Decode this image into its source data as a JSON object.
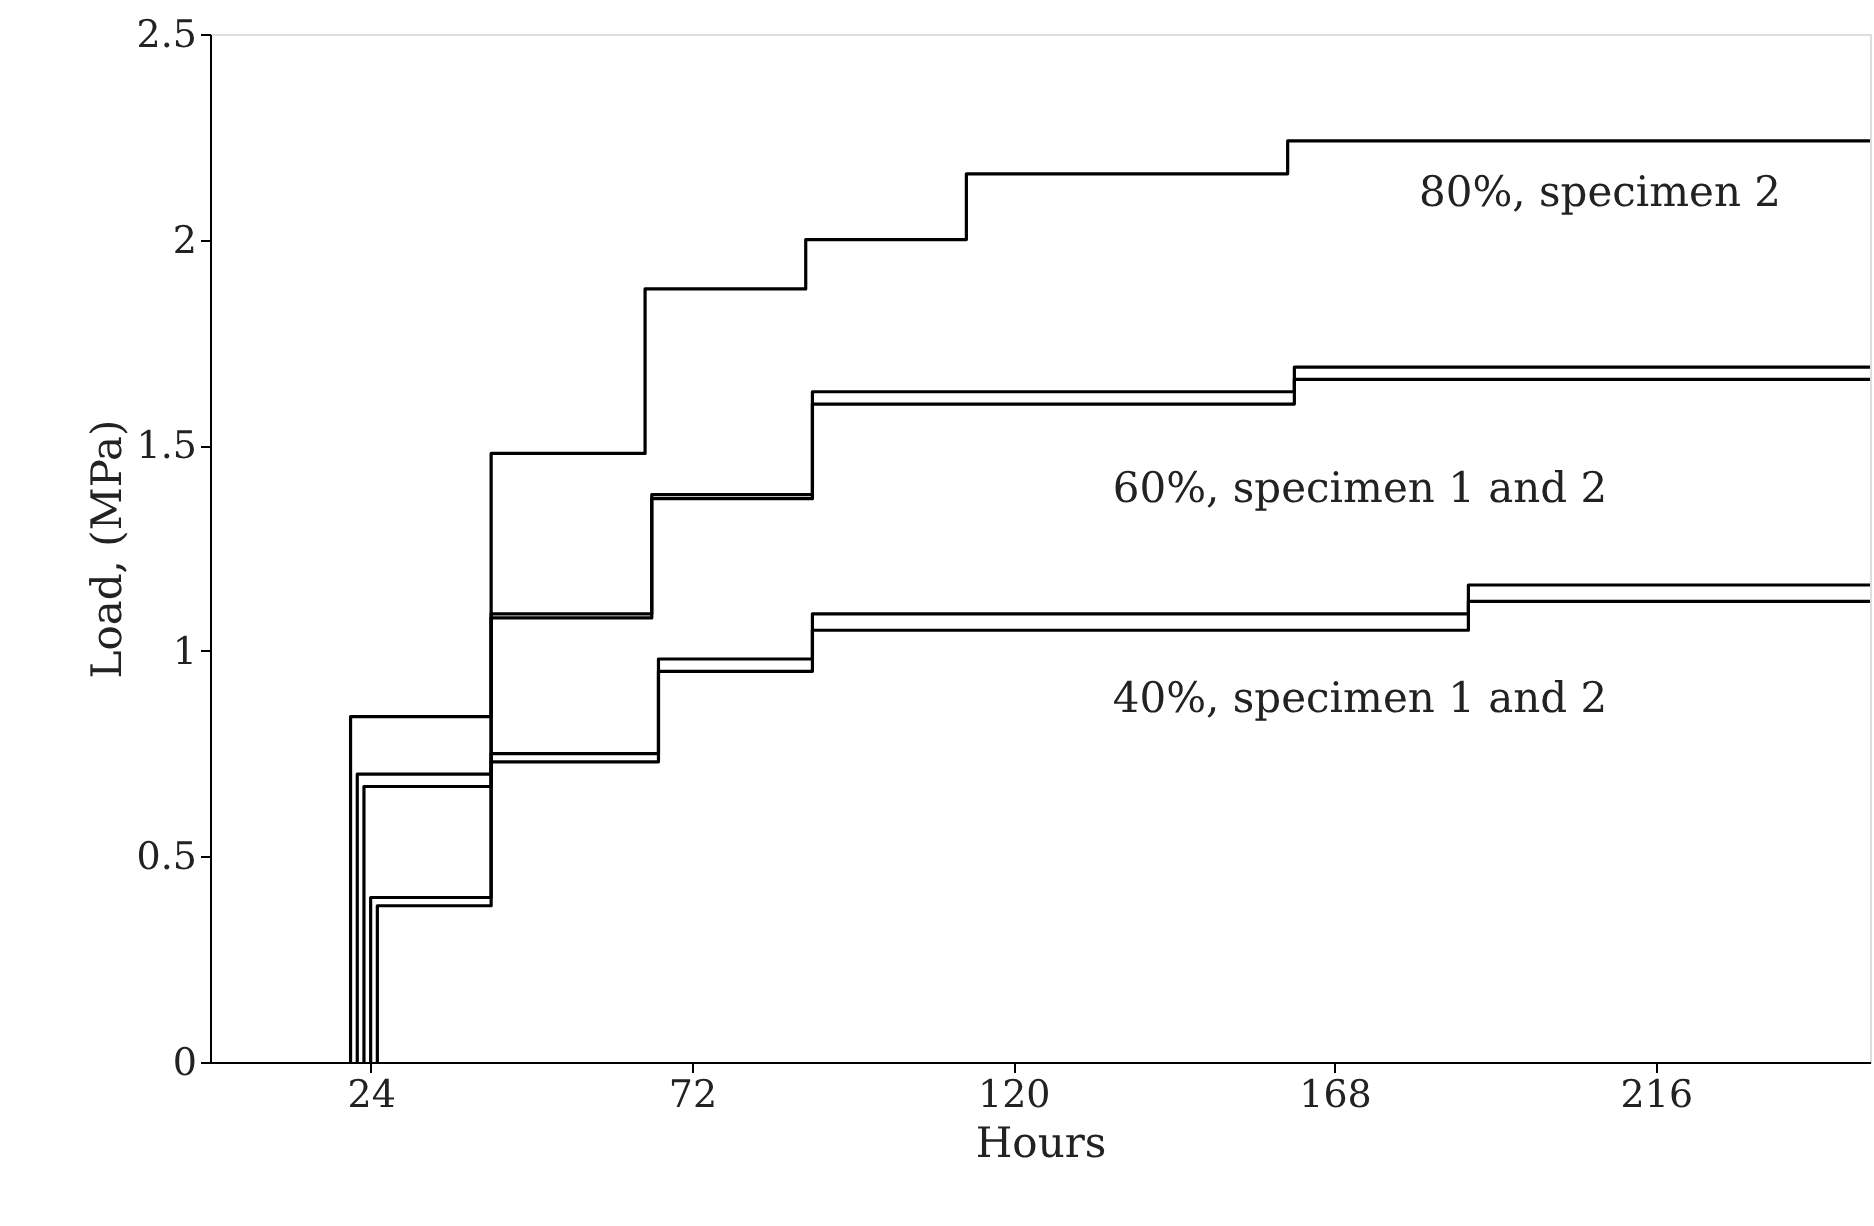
{
  "chart_data": {
    "type": "step",
    "xlabel": "Hours",
    "ylabel": "Load, (MPa)",
    "xlim": [
      0,
      248
    ],
    "xticks": [
      24,
      72,
      120,
      168,
      216
    ],
    "ylim": [
      0,
      2.5
    ],
    "yticks": [
      0,
      0.5,
      1,
      1.5,
      2,
      2.5
    ],
    "grid": false,
    "line_style": "solid",
    "marker": "none",
    "series": [
      {
        "color": "#000000",
        "x": [
          21,
          21,
          42,
          65,
          89,
          113,
          161,
          248
        ],
        "values": [
          0,
          0.84,
          1.48,
          1.88,
          2.0,
          2.16,
          2.24,
          2.24
        ]
      },
      {
        "color": "#000000",
        "x": [
          22,
          22,
          42,
          66,
          90,
          162,
          248
        ],
        "values": [
          0,
          0.7,
          1.09,
          1.38,
          1.63,
          1.69,
          1.69
        ]
      },
      {
        "color": "#000000",
        "x": [
          23,
          23,
          42,
          66,
          90,
          162,
          248
        ],
        "values": [
          0,
          0.67,
          1.08,
          1.37,
          1.6,
          1.66,
          1.66
        ]
      },
      {
        "color": "#000000",
        "x": [
          24,
          24,
          42,
          67,
          90,
          188,
          248
        ],
        "values": [
          0,
          0.4,
          0.75,
          0.98,
          1.05,
          1.16,
          1.16
        ]
      },
      {
        "color": "#000000",
        "x": [
          25,
          25,
          42,
          67,
          90,
          188,
          248
        ],
        "values": [
          0,
          0.38,
          0.73,
          0.95,
          1.09,
          1.12,
          1.12
        ]
      }
    ],
    "annotations": [
      "80%, specimen 2",
      "60%, specimen 1 and 2",
      "40%, specimen 1 and 2"
    ]
  }
}
